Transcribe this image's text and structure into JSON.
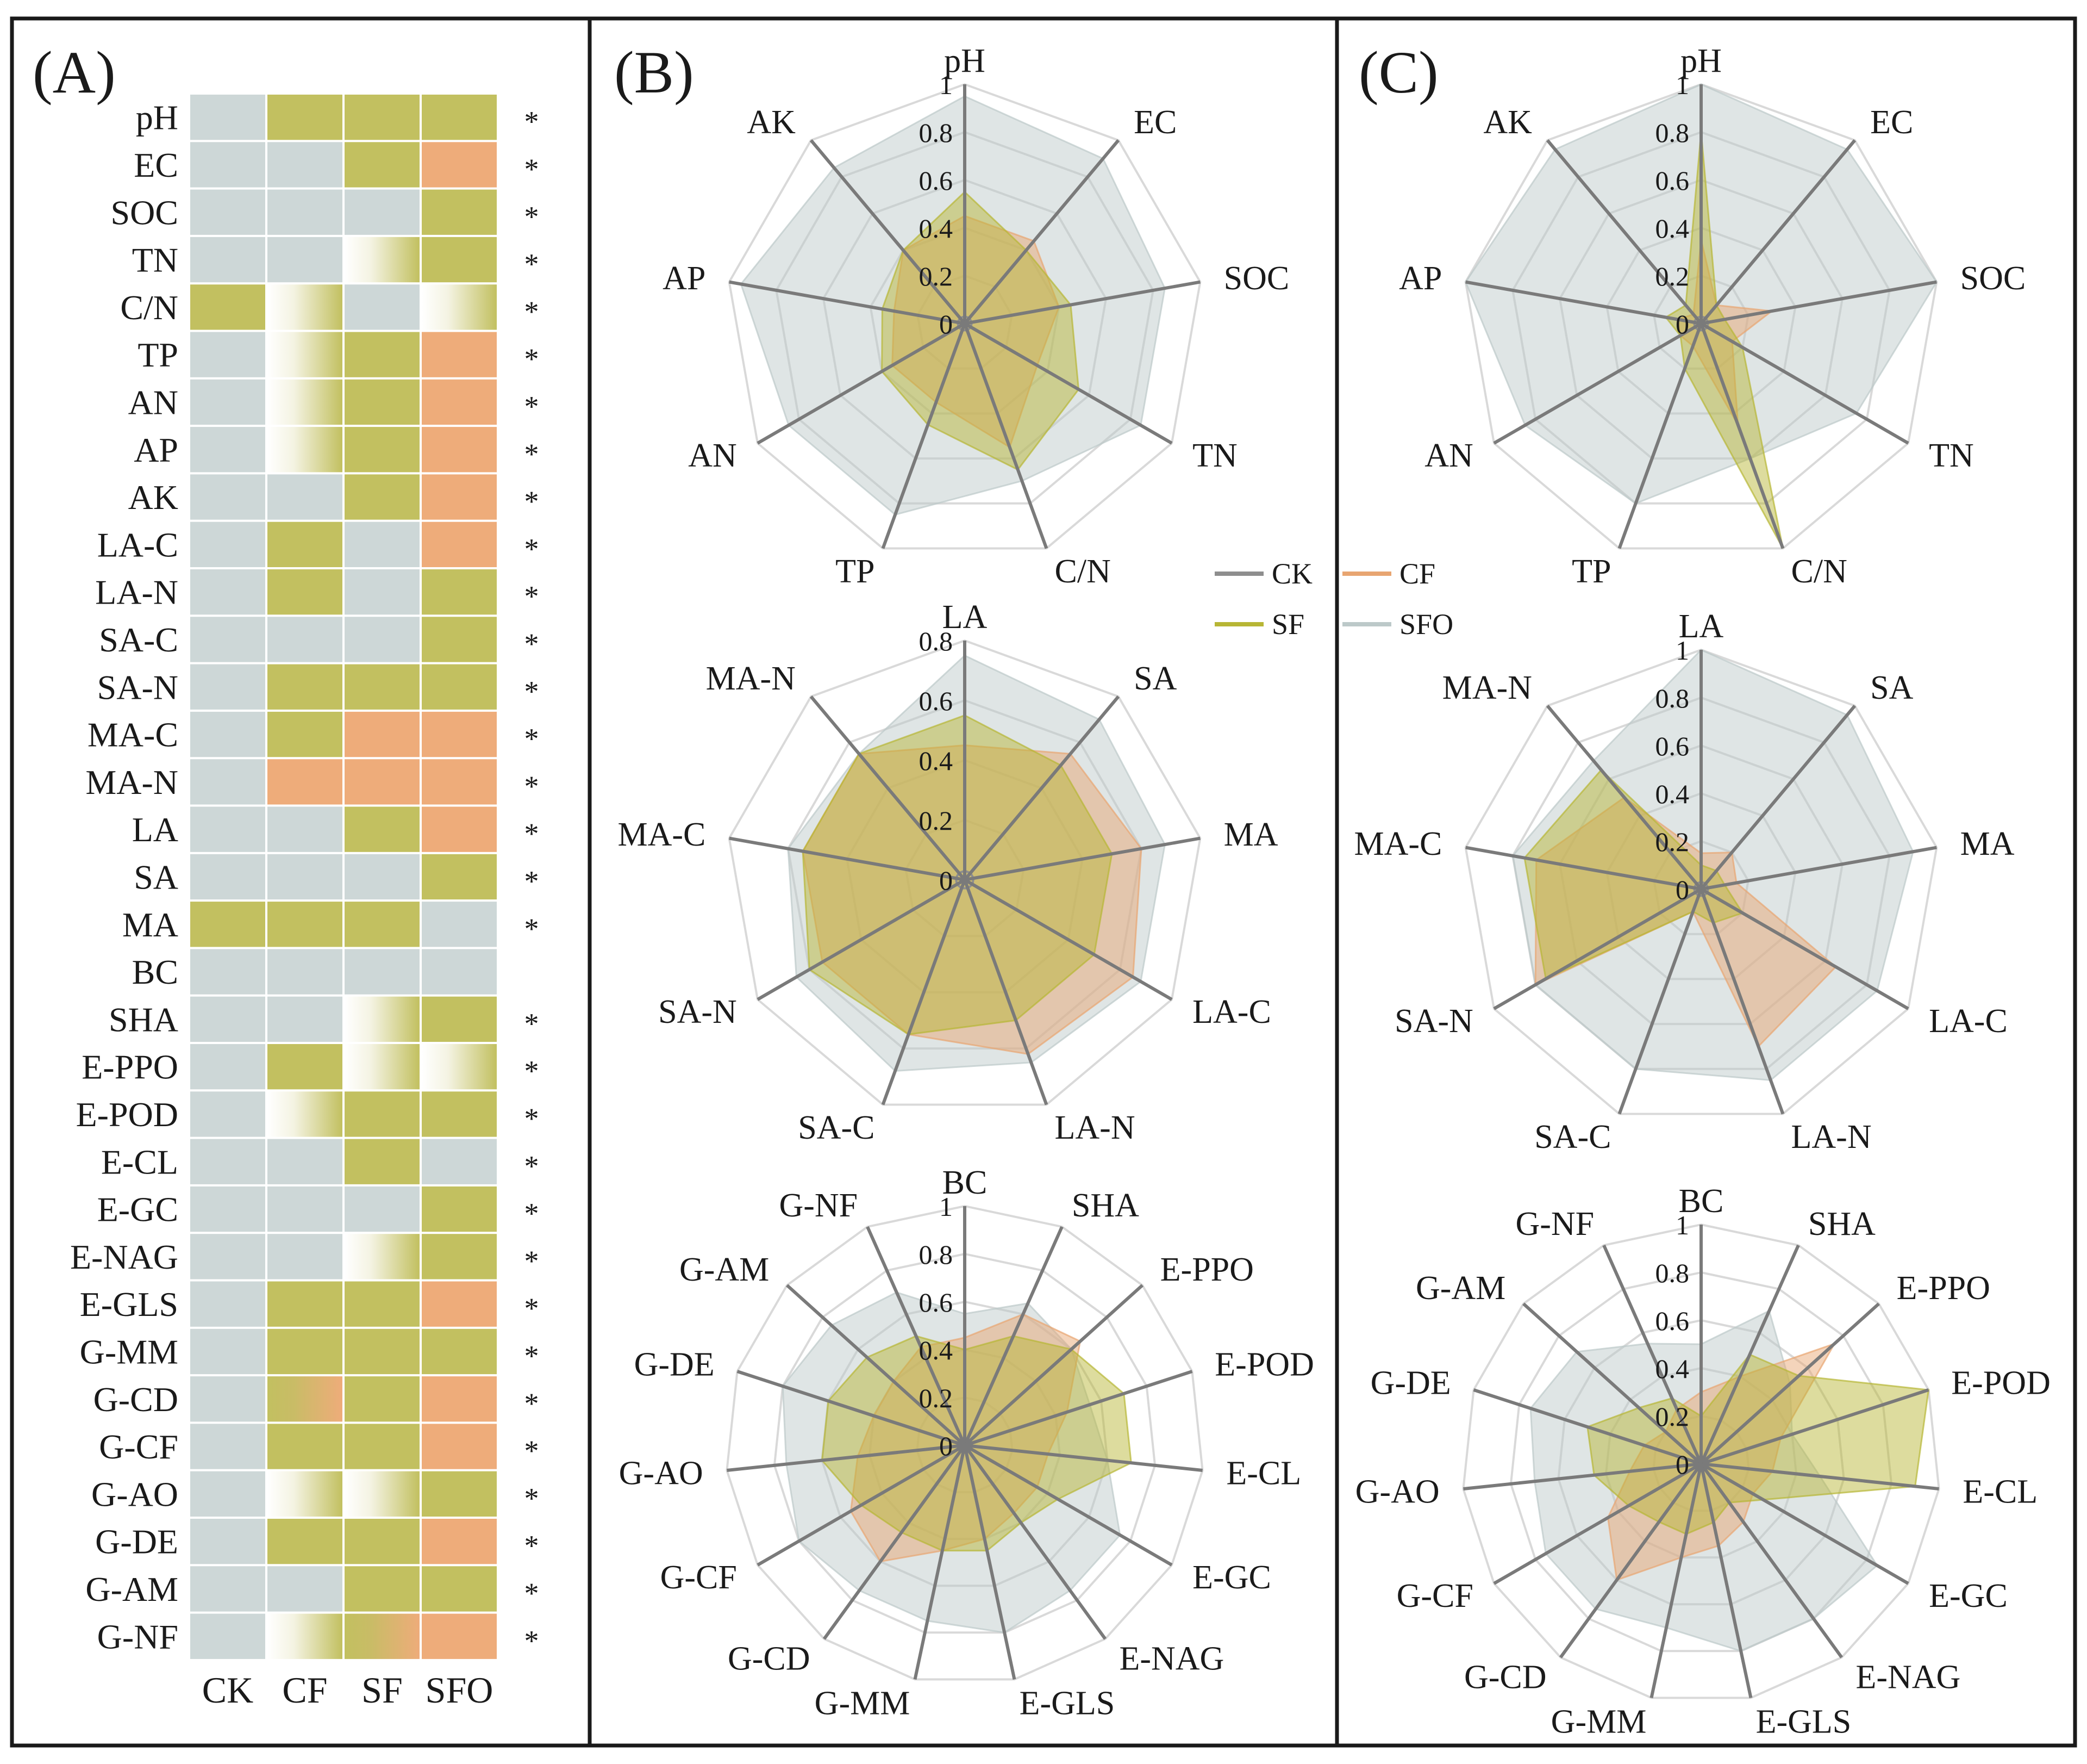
{
  "colors": {
    "grey": "#cdd7d7",
    "green": "#c2c060",
    "orange": "#eeac7a",
    "white": "#ffffff",
    "ck_line": "#8e8e8e",
    "cf_line": "#e8a571",
    "sf_line": "#b7b635",
    "sfo_line": "#bcc9c9",
    "border": "#1a1a1a"
  },
  "panels": {
    "A": {
      "letter": "(A)"
    },
    "B": {
      "letter": "(B)"
    },
    "C": {
      "letter": "(C)"
    }
  },
  "legend": [
    "CK",
    "CF",
    "SF",
    "SFO"
  ],
  "chart_data": [
    {
      "type": "heatmap",
      "panel": "(A)",
      "columns": [
        "CK",
        "CF",
        "SF",
        "SFO"
      ],
      "rows": [
        {
          "label": "pH",
          "cells": [
            "grey",
            "green",
            "green",
            "green"
          ],
          "star": "*"
        },
        {
          "label": "EC",
          "cells": [
            "grey",
            "grey",
            "green",
            "orange"
          ],
          "star": "*"
        },
        {
          "label": "SOC",
          "cells": [
            "grey",
            "grey",
            "grey",
            "green"
          ],
          "star": "*"
        },
        {
          "label": "TN",
          "cells": [
            "grey",
            "grey",
            "white-green",
            "green"
          ],
          "star": "*"
        },
        {
          "label": "C/N",
          "cells": [
            "green",
            "white-green",
            "grey",
            "white-green"
          ],
          "star": "*"
        },
        {
          "label": "TP",
          "cells": [
            "grey",
            "white-green",
            "green",
            "orange"
          ],
          "star": "*"
        },
        {
          "label": "AN",
          "cells": [
            "grey",
            "white-green",
            "green",
            "orange"
          ],
          "star": "*"
        },
        {
          "label": "AP",
          "cells": [
            "grey",
            "white-green",
            "green",
            "orange"
          ],
          "star": "*"
        },
        {
          "label": "AK",
          "cells": [
            "grey",
            "grey",
            "green",
            "orange"
          ],
          "star": "*"
        },
        {
          "label": "LA-C",
          "cells": [
            "grey",
            "green",
            "grey",
            "orange"
          ],
          "star": "*"
        },
        {
          "label": "LA-N",
          "cells": [
            "grey",
            "green",
            "grey",
            "green"
          ],
          "star": "*"
        },
        {
          "label": "SA-C",
          "cells": [
            "grey",
            "grey",
            "grey",
            "green"
          ],
          "star": "*"
        },
        {
          "label": "SA-N",
          "cells": [
            "grey",
            "green",
            "green",
            "green"
          ],
          "star": "*"
        },
        {
          "label": "MA-C",
          "cells": [
            "grey",
            "green",
            "orange",
            "orange"
          ],
          "star": "*"
        },
        {
          "label": "MA-N",
          "cells": [
            "grey",
            "orange",
            "orange",
            "orange"
          ],
          "star": "*"
        },
        {
          "label": "LA",
          "cells": [
            "grey",
            "grey",
            "green",
            "orange"
          ],
          "star": "*"
        },
        {
          "label": "SA",
          "cells": [
            "grey",
            "grey",
            "grey",
            "green"
          ],
          "star": "*"
        },
        {
          "label": "MA",
          "cells": [
            "green",
            "green",
            "green",
            "grey"
          ],
          "star": "*"
        },
        {
          "label": "BC",
          "cells": [
            "grey",
            "grey",
            "grey",
            "grey"
          ],
          "star": ""
        },
        {
          "label": "SHA",
          "cells": [
            "grey",
            "grey",
            "white-green",
            "green"
          ],
          "star": "*"
        },
        {
          "label": "E-PPO",
          "cells": [
            "grey",
            "green",
            "white-green",
            "white-green"
          ],
          "star": "*"
        },
        {
          "label": "E-POD",
          "cells": [
            "grey",
            "white-green",
            "green",
            "green"
          ],
          "star": "*"
        },
        {
          "label": "E-CL",
          "cells": [
            "grey",
            "grey",
            "green",
            "grey"
          ],
          "star": "*"
        },
        {
          "label": "E-GC",
          "cells": [
            "grey",
            "grey",
            "grey",
            "green"
          ],
          "star": "*"
        },
        {
          "label": "E-NAG",
          "cells": [
            "grey",
            "grey",
            "white-green",
            "green"
          ],
          "star": "*"
        },
        {
          "label": "E-GLS",
          "cells": [
            "grey",
            "green",
            "green",
            "orange"
          ],
          "star": "*"
        },
        {
          "label": "G-MM",
          "cells": [
            "grey",
            "green",
            "green",
            "green"
          ],
          "star": "*"
        },
        {
          "label": "G-CD",
          "cells": [
            "grey",
            "green-orange",
            "green",
            "orange"
          ],
          "star": "*"
        },
        {
          "label": "G-CF",
          "cells": [
            "grey",
            "green",
            "green",
            "orange"
          ],
          "star": "*"
        },
        {
          "label": "G-AO",
          "cells": [
            "grey",
            "white-green",
            "white-green",
            "green"
          ],
          "star": "*"
        },
        {
          "label": "G-DE",
          "cells": [
            "grey",
            "green",
            "green",
            "orange"
          ],
          "star": "*"
        },
        {
          "label": "G-AM",
          "cells": [
            "grey",
            "grey",
            "green",
            "green"
          ],
          "star": "*"
        },
        {
          "label": "G-NF",
          "cells": [
            "grey",
            "white-green",
            "green-orange",
            "orange"
          ],
          "star": "*"
        }
      ]
    },
    {
      "type": "radar",
      "panel": "(B)",
      "group": "soil",
      "axes": [
        "pH",
        "EC",
        "SOC",
        "TN",
        "C/N",
        "TP",
        "AN",
        "AP",
        "AK"
      ],
      "max": 1,
      "ticks": [
        "0",
        "0.2",
        "0.4",
        "0.6",
        "0.8",
        "1"
      ],
      "series": [
        {
          "name": "CK",
          "values": [
            0.03,
            0.03,
            0.03,
            0.03,
            0.03,
            0.03,
            0.03,
            0.03,
            0.03
          ]
        },
        {
          "name": "CF",
          "values": [
            0.45,
            0.45,
            0.4,
            0.35,
            0.55,
            0.35,
            0.35,
            0.3,
            0.4
          ]
        },
        {
          "name": "SF",
          "values": [
            0.55,
            0.4,
            0.45,
            0.55,
            0.65,
            0.45,
            0.4,
            0.35,
            0.4
          ]
        },
        {
          "name": "SFO",
          "values": [
            0.95,
            0.9,
            0.85,
            0.85,
            0.7,
            0.85,
            0.85,
            0.95,
            0.85
          ]
        }
      ]
    },
    {
      "type": "radar",
      "panel": "(B)",
      "group": "aggregates",
      "axes": [
        "LA",
        "SA",
        "MA",
        "LA-C",
        "LA-N",
        "SA-C",
        "SA-N",
        "MA-C",
        "MA-N"
      ],
      "max": 0.8,
      "ticks": [
        "0",
        "0.2",
        "0.4",
        "0.6",
        "0.8"
      ],
      "series": [
        {
          "name": "CK",
          "values": [
            0.03,
            0.03,
            0.03,
            0.03,
            0.03,
            0.03,
            0.03,
            0.03,
            0.03
          ]
        },
        {
          "name": "CF",
          "values": [
            0.45,
            0.55,
            0.6,
            0.65,
            0.62,
            0.55,
            0.55,
            0.55,
            0.55
          ]
        },
        {
          "name": "SF",
          "values": [
            0.55,
            0.5,
            0.5,
            0.5,
            0.5,
            0.55,
            0.6,
            0.55,
            0.55
          ]
        },
        {
          "name": "SFO",
          "values": [
            0.75,
            0.7,
            0.68,
            0.68,
            0.65,
            0.68,
            0.65,
            0.6,
            0.55
          ]
        }
      ]
    },
    {
      "type": "radar",
      "panel": "(B)",
      "group": "humus-enzymes",
      "axes": [
        "BC",
        "SHA",
        "E-PPO",
        "E-POD",
        "E-CL",
        "E-GC",
        "E-NAG",
        "E-GLS",
        "G-MM",
        "G-CD",
        "G-CF",
        "G-AO",
        "G-DE",
        "G-AM",
        "G-NF"
      ],
      "max": 1,
      "ticks": [
        "0",
        "0.2",
        "0.4",
        "0.6",
        "0.8",
        "1"
      ],
      "series": [
        {
          "name": "CK",
          "values": [
            0.03,
            0.03,
            0.03,
            0.03,
            0.03,
            0.03,
            0.03,
            0.03,
            0.03,
            0.03,
            0.03,
            0.03,
            0.03,
            0.03,
            0.03
          ]
        },
        {
          "name": "CF",
          "values": [
            0.45,
            0.6,
            0.65,
            0.45,
            0.35,
            0.35,
            0.35,
            0.4,
            0.45,
            0.6,
            0.55,
            0.45,
            0.4,
            0.4,
            0.45
          ]
        },
        {
          "name": "SF",
          "values": [
            0.4,
            0.5,
            0.6,
            0.7,
            0.7,
            0.45,
            0.4,
            0.45,
            0.45,
            0.45,
            0.5,
            0.6,
            0.6,
            0.55,
            0.5
          ]
        },
        {
          "name": "SFO",
          "values": [
            0.55,
            0.65,
            0.6,
            0.55,
            0.6,
            0.75,
            0.75,
            0.8,
            0.75,
            0.75,
            0.8,
            0.75,
            0.8,
            0.75,
            0.7
          ]
        }
      ]
    },
    {
      "type": "radar",
      "panel": "(C)",
      "group": "soil",
      "axes": [
        "pH",
        "EC",
        "SOC",
        "TN",
        "C/N",
        "TP",
        "AN",
        "AP",
        "AK"
      ],
      "max": 1,
      "ticks": [
        "0",
        "0.2",
        "0.4",
        "0.6",
        "0.8",
        "1"
      ],
      "series": [
        {
          "name": "CK",
          "values": [
            0.03,
            0.03,
            0.03,
            0.03,
            0.03,
            0.03,
            0.03,
            0.03,
            0.03
          ]
        },
        {
          "name": "CF",
          "values": [
            0.35,
            0.1,
            0.3,
            0.15,
            0.45,
            0.1,
            0.1,
            0.1,
            0.05
          ]
        },
        {
          "name": "SF",
          "values": [
            0.8,
            0.1,
            0.1,
            0.2,
            1.0,
            0.2,
            0.1,
            0.15,
            0.1
          ]
        },
        {
          "name": "SFO",
          "values": [
            1.0,
            0.95,
            1.0,
            0.75,
            0.6,
            0.8,
            0.85,
            1.0,
            0.95
          ]
        }
      ]
    },
    {
      "type": "radar",
      "panel": "(C)",
      "group": "aggregates",
      "axes": [
        "LA",
        "SA",
        "MA",
        "LA-C",
        "LA-N",
        "SA-C",
        "SA-N",
        "MA-C",
        "MA-N"
      ],
      "max": 1,
      "ticks": [
        "0",
        "0.2",
        "0.4",
        "0.6",
        "0.8",
        "1"
      ],
      "series": [
        {
          "name": "CK",
          "values": [
            0.03,
            0.03,
            0.03,
            0.03,
            0.03,
            0.03,
            0.03,
            0.03,
            0.03
          ]
        },
        {
          "name": "CF",
          "values": [
            0.15,
            0.2,
            0.15,
            0.65,
            0.7,
            0.1,
            0.8,
            0.7,
            0.5
          ]
        },
        {
          "name": "SF",
          "values": [
            0.1,
            0.1,
            0.1,
            0.2,
            0.15,
            0.1,
            0.75,
            0.75,
            0.65
          ]
        },
        {
          "name": "SFO",
          "values": [
            1.0,
            0.95,
            0.9,
            0.85,
            0.85,
            0.8,
            0.8,
            0.8,
            0.7
          ]
        }
      ]
    },
    {
      "type": "radar",
      "panel": "(C)",
      "group": "humus-enzymes",
      "axes": [
        "BC",
        "SHA",
        "E-PPO",
        "E-POD",
        "E-CL",
        "E-GC",
        "E-NAG",
        "E-GLS",
        "G-MM",
        "G-CD",
        "G-CF",
        "G-AO",
        "G-DE",
        "G-AM",
        "G-NF"
      ],
      "max": 1,
      "ticks": [
        "0",
        "0.2",
        "0.4",
        "0.6",
        "0.8",
        "1"
      ],
      "series": [
        {
          "name": "CK",
          "values": [
            0.03,
            0.03,
            0.03,
            0.03,
            0.03,
            0.03,
            0.03,
            0.03,
            0.03,
            0.03,
            0.03,
            0.03,
            0.03,
            0.03,
            0.03
          ]
        },
        {
          "name": "CF",
          "values": [
            0.3,
            0.4,
            0.75,
            0.35,
            0.3,
            0.25,
            0.3,
            0.35,
            0.4,
            0.6,
            0.45,
            0.3,
            0.25,
            0.2,
            0.25
          ]
        },
        {
          "name": "SF",
          "values": [
            0.2,
            0.5,
            0.55,
            1.0,
            0.9,
            0.3,
            0.2,
            0.25,
            0.3,
            0.3,
            0.35,
            0.45,
            0.5,
            0.35,
            0.3
          ]
        },
        {
          "name": "SFO",
          "values": [
            0.5,
            0.7,
            0.5,
            0.4,
            0.5,
            0.85,
            0.8,
            0.8,
            0.7,
            0.75,
            0.75,
            0.7,
            0.75,
            0.7,
            0.55
          ]
        }
      ]
    }
  ]
}
